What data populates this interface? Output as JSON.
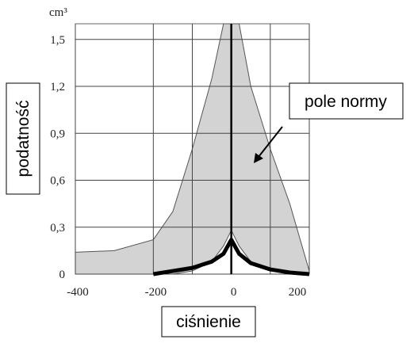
{
  "chart_data": {
    "type": "band-line",
    "y_unit": "cm³",
    "x_label": "ciśnienie",
    "y_label": "podatność",
    "annotation": "pole normy",
    "xlim": [
      -400,
      200
    ],
    "ylim": [
      0,
      1.6
    ],
    "xticks": [
      -400,
      -200,
      0,
      200
    ],
    "x_minor_ticks": [
      -100,
      100
    ],
    "yticks": [
      0,
      {
        "value": 0.3,
        "label": "0,3"
      },
      {
        "value": 0.6,
        "label": "0,6"
      },
      {
        "value": 0.9,
        "label": "0,9"
      },
      {
        "value": 1.2,
        "label": "1,2"
      },
      {
        "value": 1.5,
        "label": "1,5"
      }
    ],
    "grid": true,
    "band": {
      "color": "#d3d3d3",
      "x": [
        -400,
        -300,
        -200,
        -150,
        -100,
        -50,
        -20,
        0,
        20,
        50,
        100,
        150,
        200
      ],
      "upper": [
        0.14,
        0.15,
        0.22,
        0.4,
        0.8,
        1.25,
        1.6,
        1.6,
        1.6,
        1.2,
        0.8,
        0.45,
        0.02
      ],
      "lower": [
        0,
        0,
        0,
        0,
        0.02,
        0.08,
        0.18,
        0.28,
        0.18,
        0.08,
        0.03,
        0.01,
        0
      ]
    },
    "curve": {
      "color": "#000000",
      "x": [
        -200,
        -150,
        -100,
        -50,
        -20,
        0,
        20,
        50,
        100,
        150,
        200
      ],
      "values": [
        0,
        0.02,
        0.04,
        0.08,
        0.13,
        0.22,
        0.13,
        0.07,
        0.03,
        0.01,
        0
      ]
    }
  }
}
